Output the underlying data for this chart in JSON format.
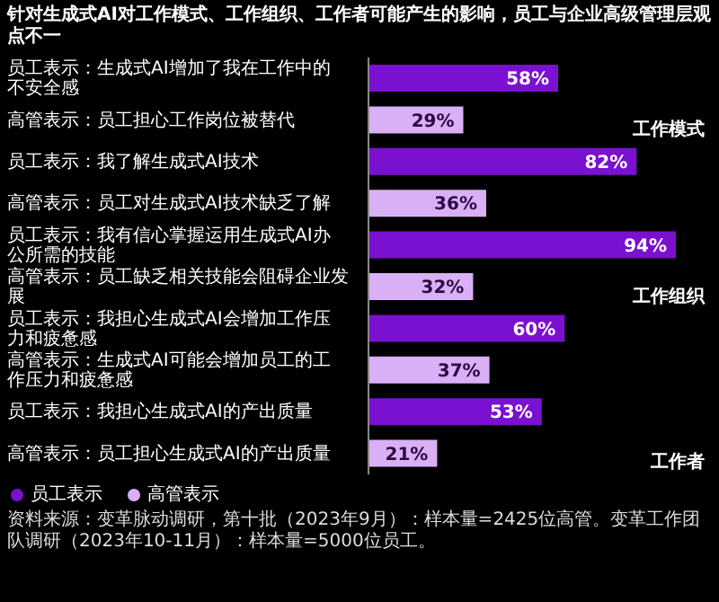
{
  "chart_data": {
    "type": "bar",
    "orientation": "horizontal",
    "title": "针对生成式AI对工作模式、工作组织、工作者可能产生的影响，员工与企业高级管理层观点不一",
    "categories": [
      "员工表示：生成式AI增加了我在工作中的不安全感",
      "高管表示：员工担心工作岗位被替代",
      "员工表示：我了解生成式AI技术",
      "高管表示：员工对生成式AI技术缺乏了解",
      "员工表示：我有信心掌握运用生成式AI办公所需的技能",
      "高管表示：员工缺乏相关技能会阻碍企业发展",
      "员工表示：我担心生成式AI会增加工作压力和疲惫感",
      "高管表示：生成式AI可能会增加员工的工作压力和疲惫感",
      "员工表示：我担心生成式AI的产出质量",
      "高管表示：员工担心生成式AI的产出质量"
    ],
    "series": [
      {
        "name": "员工表示",
        "color": "#7a10d0",
        "values": [
          58,
          null,
          82,
          null,
          94,
          null,
          60,
          null,
          53,
          null
        ],
        "value_labels": [
          "58%",
          null,
          "82%",
          null,
          "94%",
          null,
          "60%",
          null,
          "53%",
          null
        ]
      },
      {
        "name": "高管表示",
        "color": "#d9b0f5",
        "values": [
          null,
          29,
          null,
          36,
          null,
          32,
          null,
          37,
          null,
          21
        ],
        "value_labels": [
          null,
          "29%",
          null,
          "36%",
          null,
          "32%",
          null,
          "37%",
          null,
          "21%"
        ]
      }
    ],
    "legend": "bottom left",
    "grid": false,
    "annotations": [
      "工作模式",
      "工作组织",
      "工作者",
      "资料来源：变革脉动调研，第十批（2023年9月）：样本量=2425位高管。变革工作团队调研（2023年10-11月）：样本量=5000位员工。"
    ]
  }
}
